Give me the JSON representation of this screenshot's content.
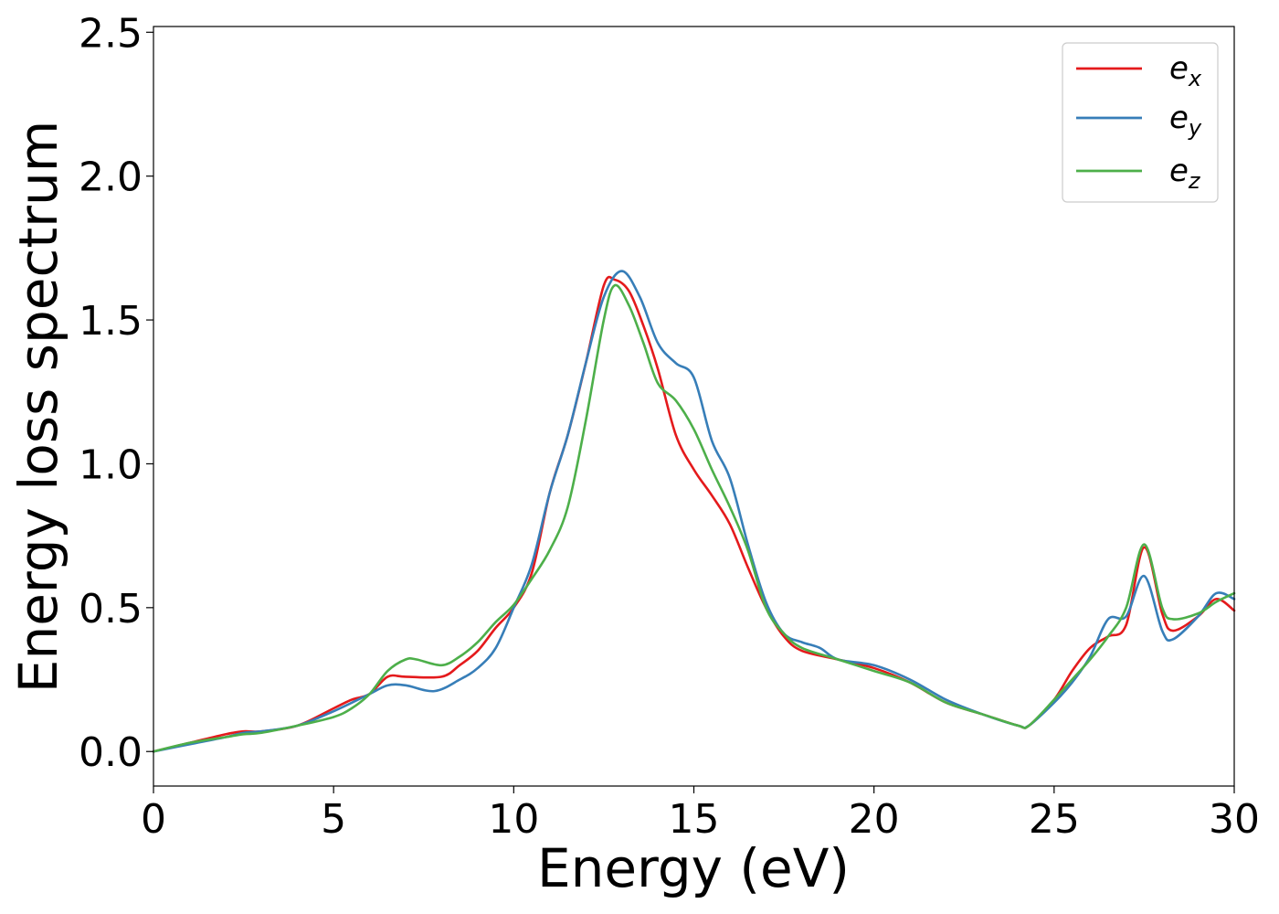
{
  "chart_data": {
    "type": "line",
    "title": "",
    "xlabel": "Energy (eV)",
    "ylabel": "Energy loss spectrum",
    "xlim": [
      0,
      30
    ],
    "ylim": [
      -0.12,
      2.52
    ],
    "xticks": [
      0,
      5,
      10,
      15,
      20,
      25,
      30
    ],
    "xtick_labels": [
      "0",
      "5",
      "10",
      "15",
      "20",
      "25",
      "30"
    ],
    "yticks": [
      0.0,
      0.5,
      1.0,
      1.5,
      2.0,
      2.5
    ],
    "ytick_labels": [
      "0.0",
      "0.5",
      "1.0",
      "1.5",
      "2.0",
      "2.5"
    ],
    "grid": false,
    "legend_position": "top-right",
    "series": [
      {
        "name": "e_x",
        "legend_base": "e",
        "legend_sub": "x",
        "color": "#e41a1c",
        "points": [
          [
            0,
            0.0
          ],
          [
            1,
            0.03
          ],
          [
            2,
            0.06
          ],
          [
            2.5,
            0.07
          ],
          [
            3,
            0.07
          ],
          [
            4,
            0.09
          ],
          [
            5,
            0.15
          ],
          [
            5.5,
            0.18
          ],
          [
            6,
            0.2
          ],
          [
            6.5,
            0.26
          ],
          [
            7,
            0.26
          ],
          [
            8,
            0.26
          ],
          [
            8.5,
            0.3
          ],
          [
            9,
            0.35
          ],
          [
            9.5,
            0.43
          ],
          [
            10,
            0.5
          ],
          [
            10.5,
            0.62
          ],
          [
            11,
            0.9
          ],
          [
            11.5,
            1.1
          ],
          [
            12,
            1.35
          ],
          [
            12.5,
            1.62
          ],
          [
            12.8,
            1.64
          ],
          [
            13.2,
            1.6
          ],
          [
            13.6,
            1.48
          ],
          [
            14,
            1.33
          ],
          [
            14.5,
            1.1
          ],
          [
            15,
            0.98
          ],
          [
            15.5,
            0.89
          ],
          [
            16,
            0.79
          ],
          [
            16.5,
            0.64
          ],
          [
            17,
            0.5
          ],
          [
            17.5,
            0.4
          ],
          [
            18,
            0.35
          ],
          [
            19,
            0.32
          ],
          [
            20,
            0.29
          ],
          [
            21,
            0.24
          ],
          [
            22,
            0.17
          ],
          [
            23,
            0.13
          ],
          [
            24,
            0.09
          ],
          [
            24.3,
            0.09
          ],
          [
            25,
            0.18
          ],
          [
            25.5,
            0.28
          ],
          [
            26,
            0.36
          ],
          [
            26.5,
            0.4
          ],
          [
            27,
            0.44
          ],
          [
            27.5,
            0.71
          ],
          [
            28,
            0.48
          ],
          [
            28.3,
            0.42
          ],
          [
            29,
            0.47
          ],
          [
            29.5,
            0.53
          ],
          [
            30,
            0.49
          ]
        ]
      },
      {
        "name": "e_y",
        "legend_base": "e",
        "legend_sub": "y",
        "color": "#377eb8",
        "points": [
          [
            0,
            0.0
          ],
          [
            1,
            0.025
          ],
          [
            2,
            0.05
          ],
          [
            2.5,
            0.065
          ],
          [
            3,
            0.07
          ],
          [
            4,
            0.09
          ],
          [
            5,
            0.14
          ],
          [
            6,
            0.2
          ],
          [
            6.5,
            0.23
          ],
          [
            7,
            0.23
          ],
          [
            7.8,
            0.21
          ],
          [
            8.5,
            0.25
          ],
          [
            9,
            0.29
          ],
          [
            9.5,
            0.36
          ],
          [
            10,
            0.5
          ],
          [
            10.5,
            0.65
          ],
          [
            11,
            0.9
          ],
          [
            11.5,
            1.1
          ],
          [
            12,
            1.35
          ],
          [
            12.5,
            1.58
          ],
          [
            13,
            1.67
          ],
          [
            13.5,
            1.58
          ],
          [
            14,
            1.42
          ],
          [
            14.5,
            1.35
          ],
          [
            15,
            1.3
          ],
          [
            15.5,
            1.08
          ],
          [
            16,
            0.95
          ],
          [
            16.5,
            0.72
          ],
          [
            17,
            0.52
          ],
          [
            17.5,
            0.41
          ],
          [
            18,
            0.38
          ],
          [
            18.5,
            0.36
          ],
          [
            19,
            0.32
          ],
          [
            20,
            0.3
          ],
          [
            21,
            0.25
          ],
          [
            22,
            0.18
          ],
          [
            23,
            0.13
          ],
          [
            24,
            0.09
          ],
          [
            24.3,
            0.09
          ],
          [
            25,
            0.17
          ],
          [
            25.5,
            0.24
          ],
          [
            26,
            0.33
          ],
          [
            26.5,
            0.46
          ],
          [
            27,
            0.47
          ],
          [
            27.5,
            0.61
          ],
          [
            28,
            0.42
          ],
          [
            28.3,
            0.39
          ],
          [
            29,
            0.47
          ],
          [
            29.5,
            0.55
          ],
          [
            30,
            0.53
          ]
        ]
      },
      {
        "name": "e_z",
        "legend_base": "e",
        "legend_sub": "z",
        "color": "#4daf4a",
        "points": [
          [
            0,
            0.0
          ],
          [
            1,
            0.03
          ],
          [
            2,
            0.05
          ],
          [
            2.5,
            0.06
          ],
          [
            3,
            0.065
          ],
          [
            4,
            0.09
          ],
          [
            5,
            0.12
          ],
          [
            5.5,
            0.15
          ],
          [
            6,
            0.2
          ],
          [
            6.5,
            0.28
          ],
          [
            7,
            0.32
          ],
          [
            7.3,
            0.32
          ],
          [
            8,
            0.3
          ],
          [
            8.5,
            0.33
          ],
          [
            9,
            0.38
          ],
          [
            9.5,
            0.45
          ],
          [
            10,
            0.51
          ],
          [
            10.5,
            0.6
          ],
          [
            11,
            0.7
          ],
          [
            11.5,
            0.85
          ],
          [
            12,
            1.15
          ],
          [
            12.5,
            1.5
          ],
          [
            12.8,
            1.62
          ],
          [
            13.2,
            1.55
          ],
          [
            13.6,
            1.42
          ],
          [
            14,
            1.28
          ],
          [
            14.5,
            1.22
          ],
          [
            15,
            1.12
          ],
          [
            15.5,
            0.98
          ],
          [
            16,
            0.85
          ],
          [
            16.5,
            0.7
          ],
          [
            17,
            0.5
          ],
          [
            17.5,
            0.41
          ],
          [
            18,
            0.36
          ],
          [
            19,
            0.32
          ],
          [
            20,
            0.28
          ],
          [
            21,
            0.24
          ],
          [
            22,
            0.17
          ],
          [
            23,
            0.13
          ],
          [
            24,
            0.09
          ],
          [
            24.3,
            0.09
          ],
          [
            25,
            0.18
          ],
          [
            25.5,
            0.25
          ],
          [
            26,
            0.32
          ],
          [
            26.5,
            0.4
          ],
          [
            27,
            0.5
          ],
          [
            27.5,
            0.72
          ],
          [
            28,
            0.5
          ],
          [
            28.3,
            0.46
          ],
          [
            29,
            0.48
          ],
          [
            29.5,
            0.52
          ],
          [
            30,
            0.55
          ]
        ]
      }
    ]
  }
}
